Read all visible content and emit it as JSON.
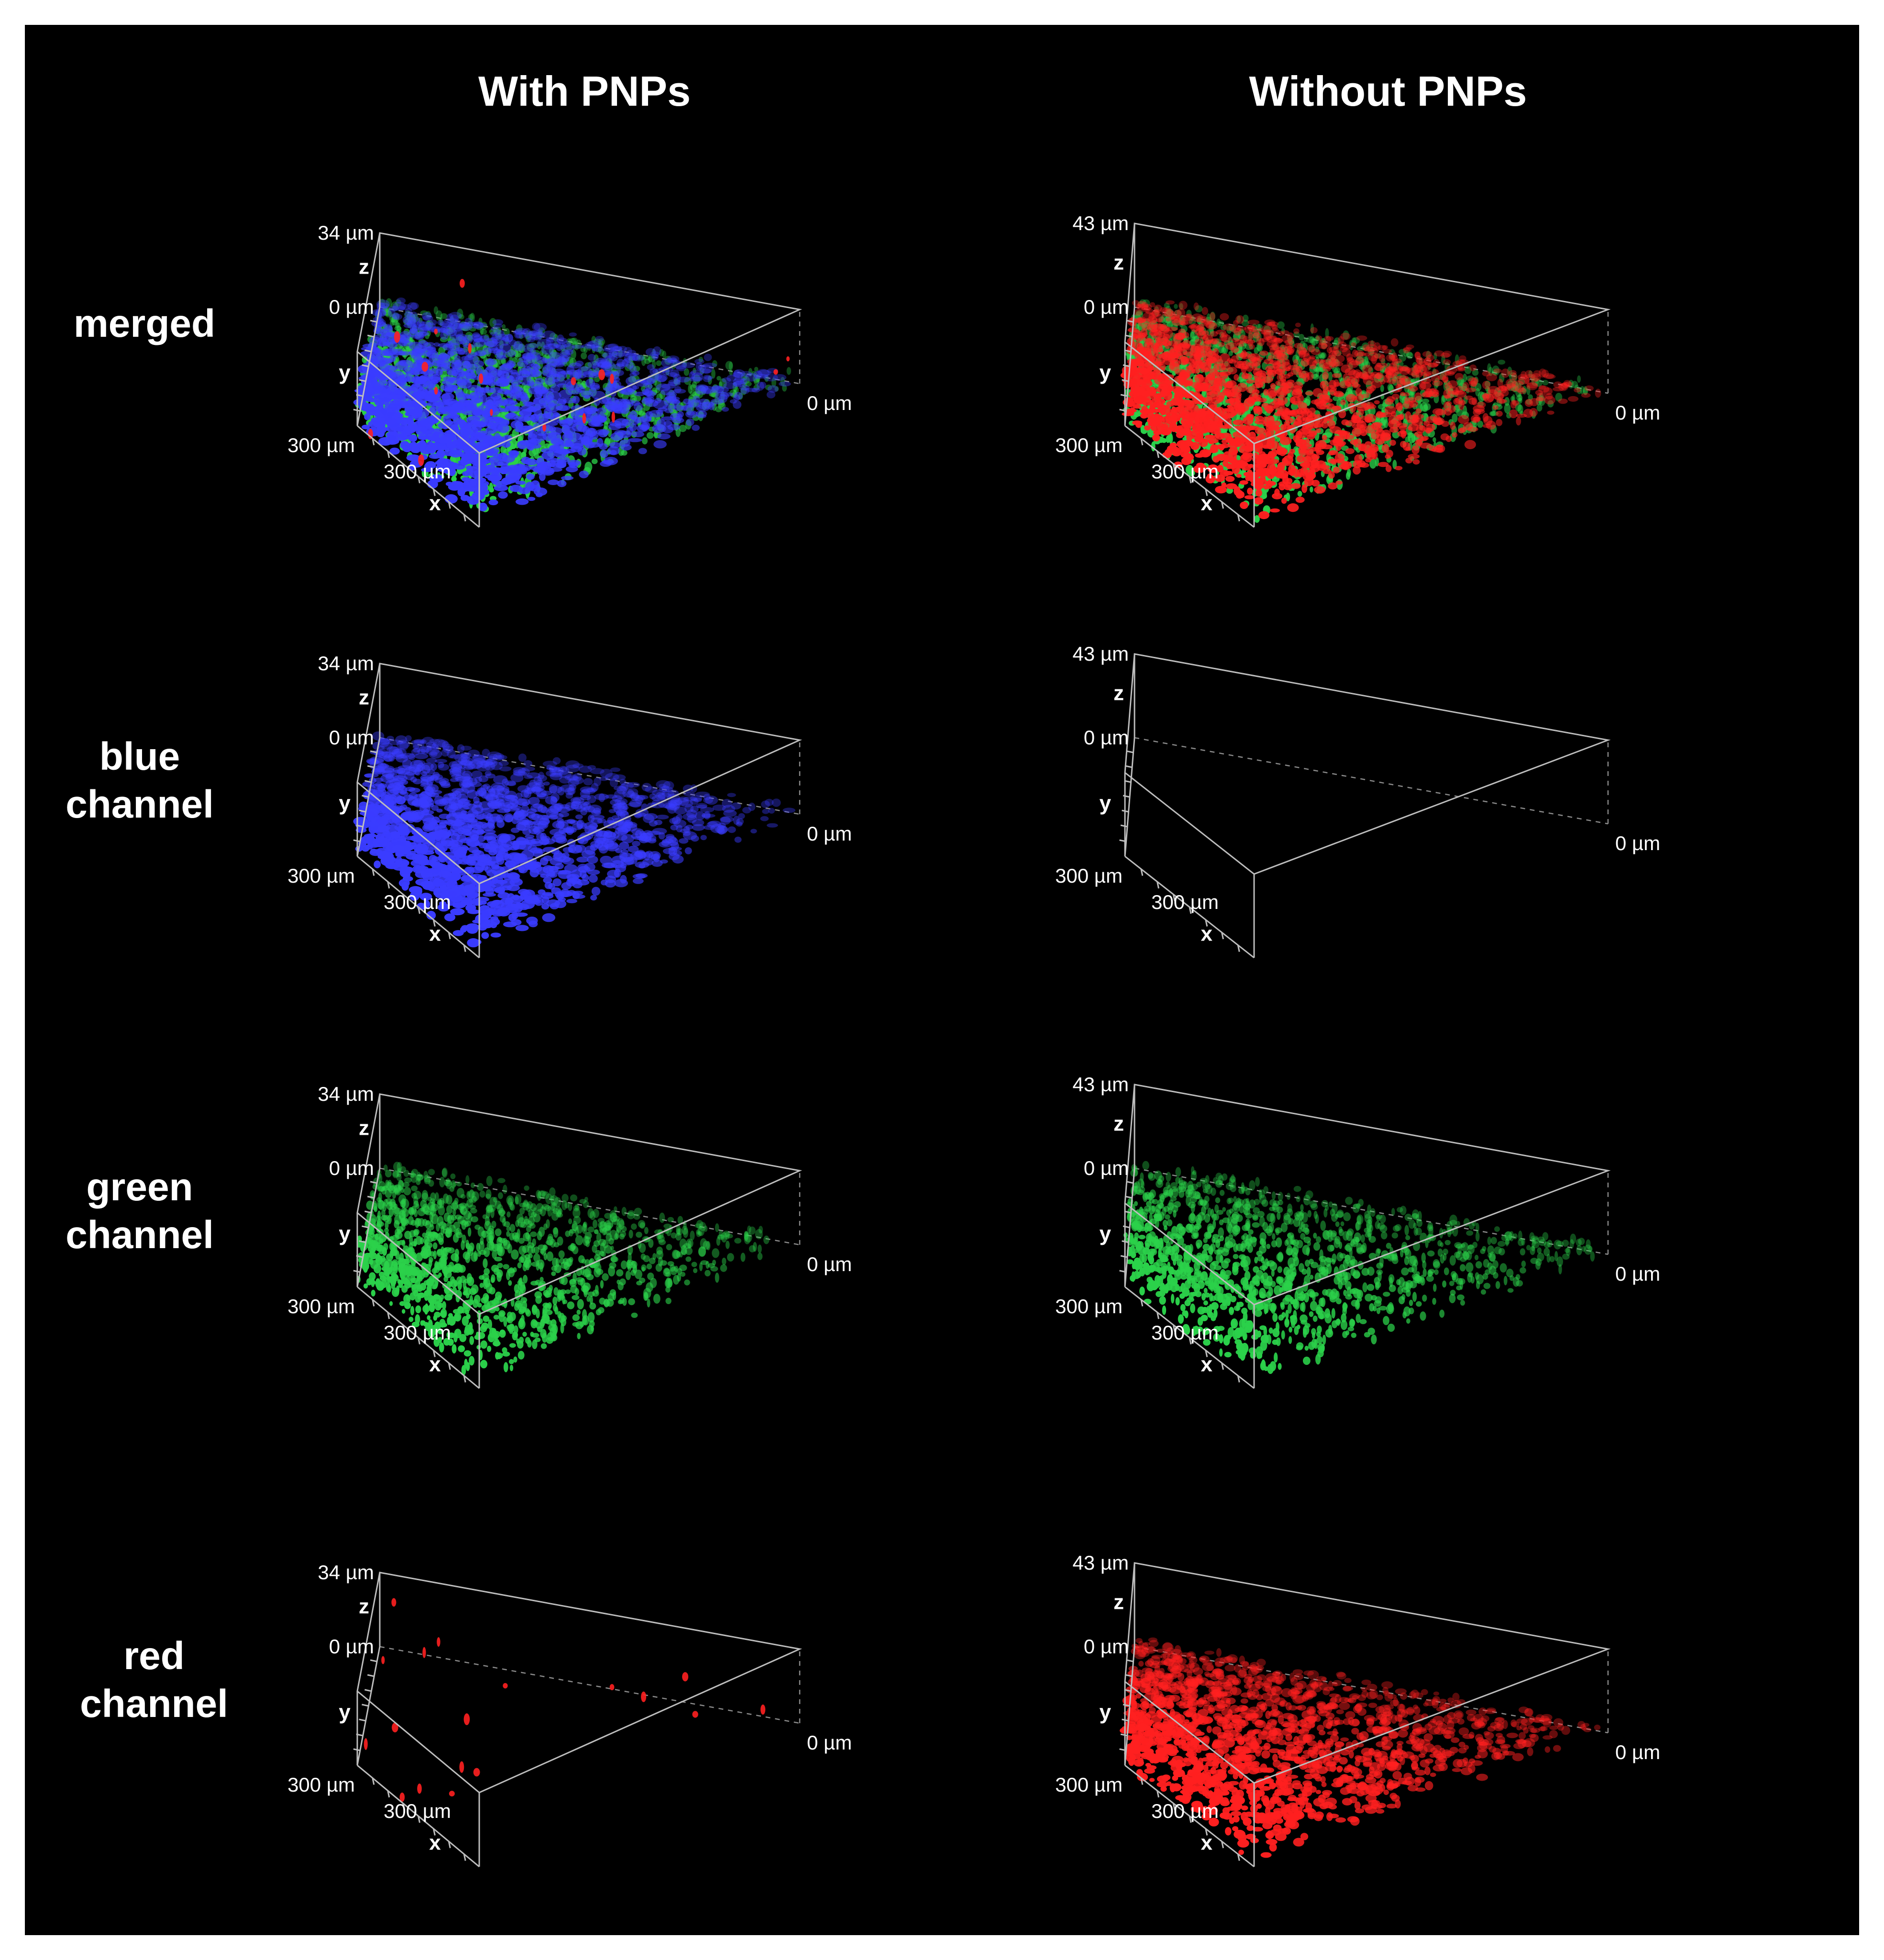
{
  "columns": [
    {
      "title": "With PNPs",
      "z_max": "34",
      "z_min": "0",
      "x_max": "300",
      "y_max": "300",
      "x_min": "0",
      "unit": "µm"
    },
    {
      "title": "Without PNPs",
      "z_max": "43",
      "z_min": "0",
      "x_max": "300",
      "y_max": "300",
      "x_min": "0",
      "unit": "µm"
    }
  ],
  "rows": [
    {
      "label": "merged"
    },
    {
      "label": "blue\nchannel"
    },
    {
      "label": "green\nchannel"
    },
    {
      "label": "red\nchannel"
    }
  ],
  "axis_letters": {
    "x": "x",
    "y": "y",
    "z": "z"
  },
  "panels": [
    {
      "row": "merged",
      "column": "With PNPs",
      "channels": [
        "green",
        "blue",
        "red-sparse"
      ]
    },
    {
      "row": "merged",
      "column": "Without PNPs",
      "channels": [
        "green",
        "red"
      ]
    },
    {
      "row": "blue channel",
      "column": "With PNPs",
      "channels": [
        "blue"
      ]
    },
    {
      "row": "blue channel",
      "column": "Without PNPs",
      "channels": []
    },
    {
      "row": "green channel",
      "column": "With PNPs",
      "channels": [
        "green"
      ]
    },
    {
      "row": "green channel",
      "column": "Without PNPs",
      "channels": [
        "green"
      ]
    },
    {
      "row": "red channel",
      "column": "With PNPs",
      "channels": [
        "red-sparse"
      ]
    },
    {
      "row": "red channel",
      "column": "Without PNPs",
      "channels": [
        "red"
      ]
    }
  ],
  "colors": {
    "background": "#000000",
    "frame": "#ffffff",
    "blue": "#3a3cff",
    "green": "#2bd14a",
    "red": "#ff2020"
  }
}
